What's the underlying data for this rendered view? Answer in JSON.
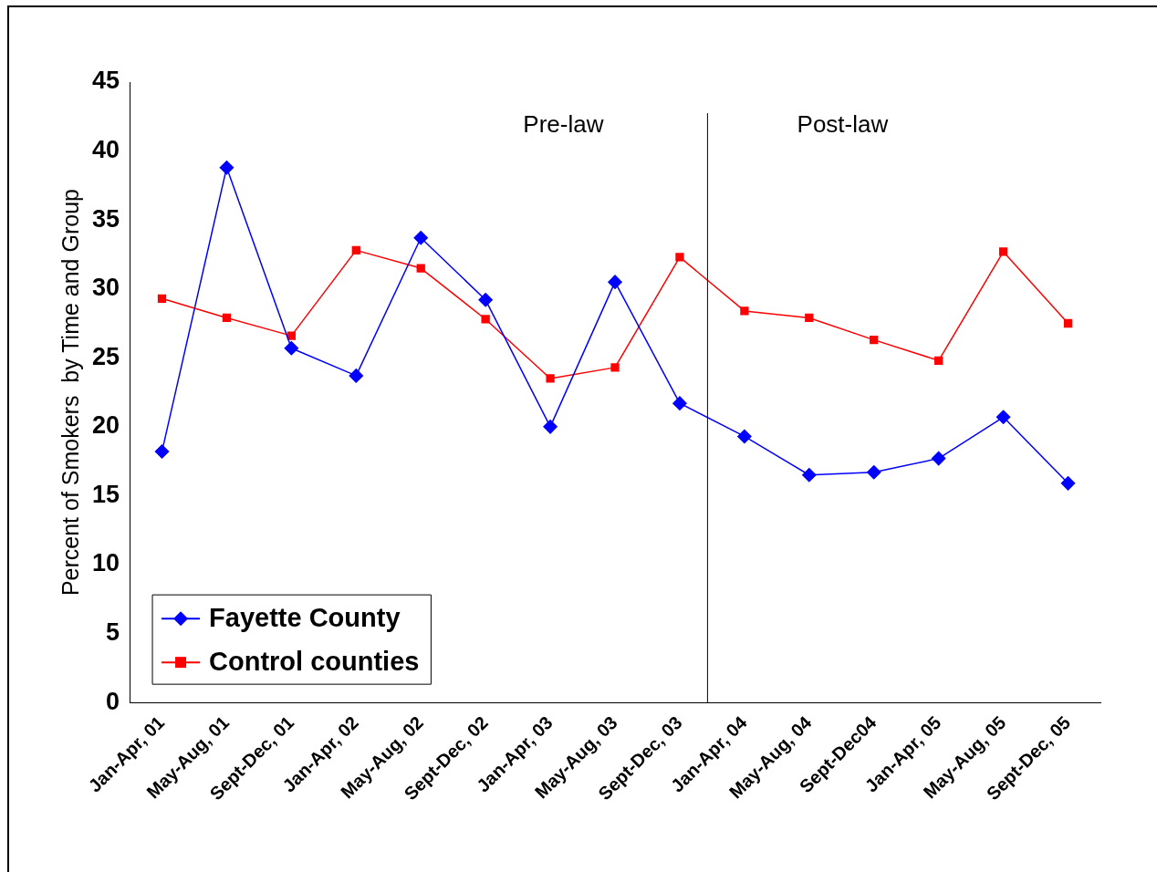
{
  "chart_data": {
    "type": "line",
    "ylabel": "Percent of Smokers  by Time and Group",
    "categories": [
      "Jan-Apr, 01",
      "May-Aug, 01",
      "Sept-Dec, 01",
      "Jan-Apr, 02",
      "May-Aug, 02",
      "Sept-Dec, 02",
      "Jan-Apr, 03",
      "May-Aug, 03",
      "Sept-Dec, 03",
      "Jan-Apr, 04",
      "May-Aug, 04",
      "Sept-Dec04",
      "Jan-Apr, 05",
      "May-Aug, 05",
      "Sept-Dec, 05"
    ],
    "series": [
      {
        "name": "Fayette County",
        "color": "#0000ff",
        "marker": "diamond",
        "values": [
          18.2,
          38.8,
          25.7,
          23.7,
          33.7,
          29.2,
          20.0,
          30.5,
          21.7,
          19.3,
          16.5,
          16.7,
          17.7,
          20.7,
          15.9
        ]
      },
      {
        "name": "Control counties",
        "color": "#ff0000",
        "marker": "square",
        "values": [
          29.3,
          27.9,
          26.6,
          32.8,
          31.5,
          27.8,
          23.5,
          24.3,
          32.3,
          28.4,
          27.9,
          26.3,
          24.8,
          32.7,
          27.5
        ]
      }
    ],
    "ylim": [
      0,
      45
    ],
    "yticks": [
      0,
      5,
      10,
      15,
      20,
      25,
      30,
      35,
      40,
      45
    ],
    "grid": false,
    "legend": "bottom left",
    "line_style": "solid",
    "annotations": [
      "Pre-law",
      "Post-law"
    ]
  }
}
